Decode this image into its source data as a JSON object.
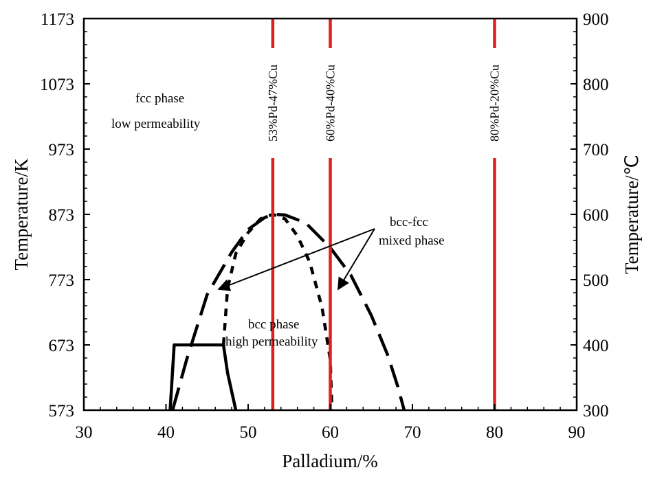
{
  "chart_data": {
    "type": "line",
    "xlabel": "Palladium/%",
    "ylabel_left": "Temperature/K",
    "ylabel_right": "Temperature/℃",
    "xlim": [
      30,
      90
    ],
    "ylim_K": [
      573,
      1173
    ],
    "ylim_C": [
      300,
      900
    ],
    "x_ticks": [
      30,
      40,
      50,
      60,
      70,
      80,
      90
    ],
    "y_ticks_K": [
      573,
      673,
      773,
      873,
      973,
      1073,
      1173
    ],
    "y_ticks_C": [
      300,
      400,
      500,
      600,
      700,
      800,
      900
    ],
    "composition_lines": [
      {
        "x": 53,
        "label": "53%Pd-47%Cu",
        "color": "#e0201c"
      },
      {
        "x": 60,
        "label": "60%Pd-40%Cu",
        "color": "#e0201c"
      },
      {
        "x": 80,
        "label": "80%Pd-20%Cu",
        "color": "#e0201c"
      }
    ],
    "phase_boundaries": [
      {
        "style": "long-dash",
        "x": [
          40.8,
          42.5,
          45,
          48,
          50,
          52,
          53,
          54.5,
          57,
          60,
          62.5,
          65,
          67,
          68.2,
          69
        ],
        "y": [
          573,
          650,
          750,
          815,
          850,
          868,
          873,
          872,
          860,
          822,
          780,
          718,
          657,
          610,
          573
        ]
      },
      {
        "style": "short-dash",
        "x": [
          47,
          47.5,
          48.5,
          50,
          51.5,
          53,
          54.5,
          56,
          57.5,
          59,
          60,
          60.2
        ],
        "y": [
          673,
          760,
          813,
          845,
          866,
          873,
          866,
          840,
          800,
          730,
          650,
          573
        ]
      },
      {
        "style": "solid",
        "x": [
          40.5,
          41,
          47,
          47.5,
          48.5
        ],
        "y": [
          573,
          673,
          673,
          630,
          573
        ]
      }
    ],
    "annotations": {
      "fcc_line1": "fcc phase",
      "fcc_line2": "low permeability",
      "mixed_line1": "bcc-fcc",
      "mixed_line2": "mixed phase",
      "bcc_line1": "bcc phase",
      "bcc_line2": "high permeability"
    },
    "grid": false
  }
}
